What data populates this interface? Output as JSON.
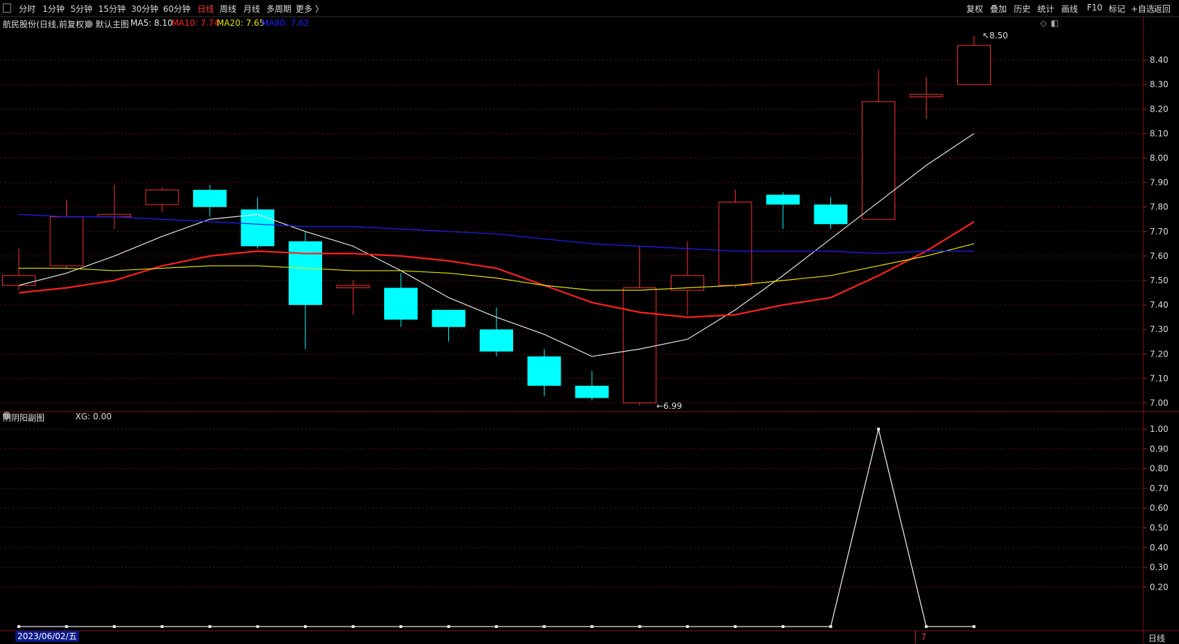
{
  "toolbar": {
    "left_icon": "panel-toggle-icon",
    "periods": [
      "分时",
      "1分钟",
      "5分钟",
      "15分钟",
      "30分钟",
      "60分钟",
      "日线",
      "周线",
      "月线",
      "多周期",
      "更多 〉"
    ],
    "active_period": "日线",
    "right_buttons": [
      "复权",
      "叠加",
      "历史",
      "统计",
      "画线",
      "F10",
      "标记",
      "+自选",
      "返回"
    ]
  },
  "main_chart": {
    "stock_name": "航民股份",
    "mode": "(日线,前复权)",
    "indicator_name": "默认主图",
    "ma": [
      {
        "label": "MA5: 8.10",
        "color": "#e6e6e6"
      },
      {
        "label": "MA10: 7.74",
        "color": "#ff2020"
      },
      {
        "label": "MA20: 7.65",
        "color": "#e6e600"
      },
      {
        "label": "MA80: 7.62",
        "color": "#2020ff"
      }
    ],
    "high_marker": "8.50",
    "low_marker": "6.99",
    "y_ticks": [
      "8.40",
      "8.30",
      "8.20",
      "8.10",
      "8.00",
      "7.90",
      "7.80",
      "7.70",
      "7.60",
      "7.50",
      "7.40",
      "7.30",
      "7.20",
      "7.10",
      "7.00"
    ]
  },
  "sub_chart": {
    "name": "阴阴阳副图",
    "value_label": "XG: 0.00",
    "y_ticks": [
      "1.00",
      "0.90",
      "0.80",
      "0.70",
      "0.60",
      "0.50",
      "0.40",
      "0.30",
      "0.20"
    ]
  },
  "footer": {
    "date": "2023/06/02/五",
    "cursor_label": "7",
    "period_label": "日线"
  },
  "chart_data": {
    "type": "candlestick",
    "ylim": [
      6.97,
      8.52
    ],
    "candles": [
      {
        "open": 7.48,
        "close": 7.52,
        "high": 7.63,
        "low": 7.46
      },
      {
        "open": 7.56,
        "close": 7.76,
        "high": 7.83,
        "low": 7.55
      },
      {
        "open": 7.76,
        "close": 7.77,
        "high": 7.89,
        "low": 7.71
      },
      {
        "open": 7.81,
        "close": 7.87,
        "high": 7.88,
        "low": 7.78
      },
      {
        "open": 7.87,
        "close": 7.8,
        "high": 7.89,
        "low": 7.76
      },
      {
        "open": 7.79,
        "close": 7.64,
        "high": 7.84,
        "low": 7.63
      },
      {
        "open": 7.66,
        "close": 7.4,
        "high": 7.7,
        "low": 7.22
      },
      {
        "open": 7.47,
        "close": 7.48,
        "high": 7.5,
        "low": 7.36
      },
      {
        "open": 7.47,
        "close": 7.34,
        "high": 7.53,
        "low": 7.31
      },
      {
        "open": 7.38,
        "close": 7.31,
        "high": 7.38,
        "low": 7.25
      },
      {
        "open": 7.3,
        "close": 7.21,
        "high": 7.39,
        "low": 7.19
      },
      {
        "open": 7.19,
        "close": 7.07,
        "high": 7.22,
        "low": 7.03
      },
      {
        "open": 7.07,
        "close": 7.02,
        "high": 7.13,
        "low": 7.01
      },
      {
        "open": 7.0,
        "close": 7.47,
        "high": 7.64,
        "low": 6.99
      },
      {
        "open": 7.46,
        "close": 7.52,
        "high": 7.66,
        "low": 7.36
      },
      {
        "open": 7.48,
        "close": 7.82,
        "high": 7.87,
        "low": 7.47
      },
      {
        "open": 7.85,
        "close": 7.81,
        "high": 7.86,
        "low": 7.71
      },
      {
        "open": 7.81,
        "close": 7.73,
        "high": 7.84,
        "low": 7.71
      },
      {
        "open": 7.75,
        "close": 8.23,
        "high": 8.36,
        "low": 7.75
      },
      {
        "open": 8.25,
        "close": 8.26,
        "high": 8.33,
        "low": 8.16
      },
      {
        "open": 8.3,
        "close": 8.46,
        "high": 8.5,
        "low": 8.3
      }
    ],
    "series": [
      {
        "name": "MA5",
        "color": "#e6e6e6",
        "width": 1.2,
        "values": [
          7.48,
          7.53,
          7.6,
          7.68,
          7.75,
          7.77,
          7.7,
          7.64,
          7.54,
          7.43,
          7.35,
          7.28,
          7.19,
          7.22,
          7.26,
          7.38,
          7.52,
          7.67,
          7.82,
          7.97,
          8.1
        ]
      },
      {
        "name": "MA10",
        "color": "#ff2020",
        "width": 2.2,
        "values": [
          7.45,
          7.47,
          7.5,
          7.56,
          7.6,
          7.62,
          7.61,
          7.61,
          7.6,
          7.58,
          7.55,
          7.48,
          7.41,
          7.37,
          7.35,
          7.36,
          7.4,
          7.43,
          7.52,
          7.62,
          7.74
        ]
      },
      {
        "name": "MA20",
        "color": "#e6e600",
        "width": 1.2,
        "values": [
          7.55,
          7.55,
          7.54,
          7.55,
          7.56,
          7.56,
          7.55,
          7.54,
          7.54,
          7.53,
          7.51,
          7.48,
          7.46,
          7.46,
          7.47,
          7.48,
          7.5,
          7.52,
          7.56,
          7.6,
          7.65
        ]
      },
      {
        "name": "MA80",
        "color": "#2020ff",
        "width": 1.2,
        "values": [
          7.77,
          7.76,
          7.76,
          7.75,
          7.74,
          7.73,
          7.72,
          7.72,
          7.71,
          7.7,
          7.69,
          7.67,
          7.65,
          7.64,
          7.63,
          7.62,
          7.62,
          7.62,
          7.61,
          7.62,
          7.62
        ]
      }
    ],
    "xg": {
      "name": "XG",
      "ylim": [
        0,
        1.0
      ],
      "values": [
        0,
        0,
        0,
        0,
        0,
        0,
        0,
        0,
        0,
        0,
        0,
        0,
        0,
        0,
        0,
        0,
        0,
        0,
        1,
        0,
        0
      ]
    }
  }
}
